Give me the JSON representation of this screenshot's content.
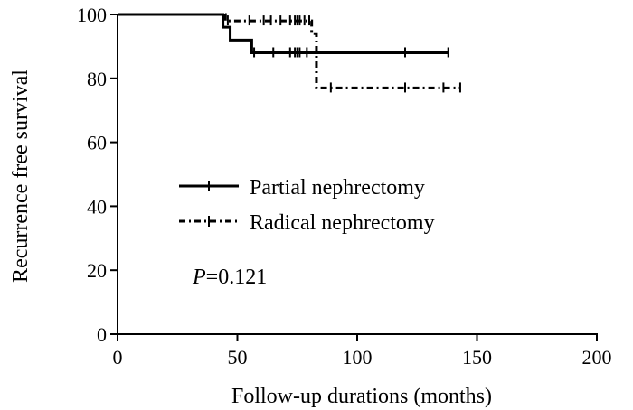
{
  "chart_data": {
    "type": "line",
    "title": "",
    "xlabel": "Follow-up durations (months)",
    "ylabel": "Recurrence free survival",
    "xlim": [
      0,
      200
    ],
    "ylim": [
      0,
      100
    ],
    "x_ticks": [
      0,
      50,
      100,
      150,
      200
    ],
    "y_ticks": [
      0,
      20,
      40,
      60,
      80,
      100
    ],
    "x_tick_labels": [
      "0",
      "50",
      "100",
      "150",
      "200"
    ],
    "y_tick_labels": [
      "0",
      "20",
      "40",
      "60",
      "80",
      "100"
    ],
    "grid": false,
    "legend_position": "center-left",
    "series": [
      {
        "name": "Partial nephrectomy",
        "line_style": "solid",
        "color": "#000000",
        "x": [
          0,
          44,
          44,
          47,
          47,
          56,
          56,
          138
        ],
        "y": [
          100,
          100,
          96,
          96,
          92,
          92,
          88,
          88
        ],
        "censored_x": [
          57,
          65,
          72,
          74,
          75,
          76,
          79,
          120,
          138
        ],
        "censored_y": [
          88,
          88,
          88,
          88,
          88,
          88,
          88,
          88,
          88
        ]
      },
      {
        "name": "Radical nephrectomy",
        "line_style": "dash-dot",
        "color": "#000000",
        "x": [
          0,
          45,
          45,
          81,
          81,
          83,
          83,
          143
        ],
        "y": [
          100,
          100,
          98,
          98,
          94,
          94,
          77,
          77
        ],
        "censored_x": [
          46,
          55,
          61,
          64,
          68,
          72,
          74,
          75,
          76,
          78,
          80,
          89,
          120,
          136,
          143
        ],
        "censored_y": [
          98,
          98,
          98,
          98,
          98,
          98,
          98,
          98,
          98,
          98,
          98,
          77,
          77,
          77,
          77
        ]
      }
    ],
    "annotation": {
      "p_symbol": "P",
      "p_value": "=0.121"
    }
  }
}
